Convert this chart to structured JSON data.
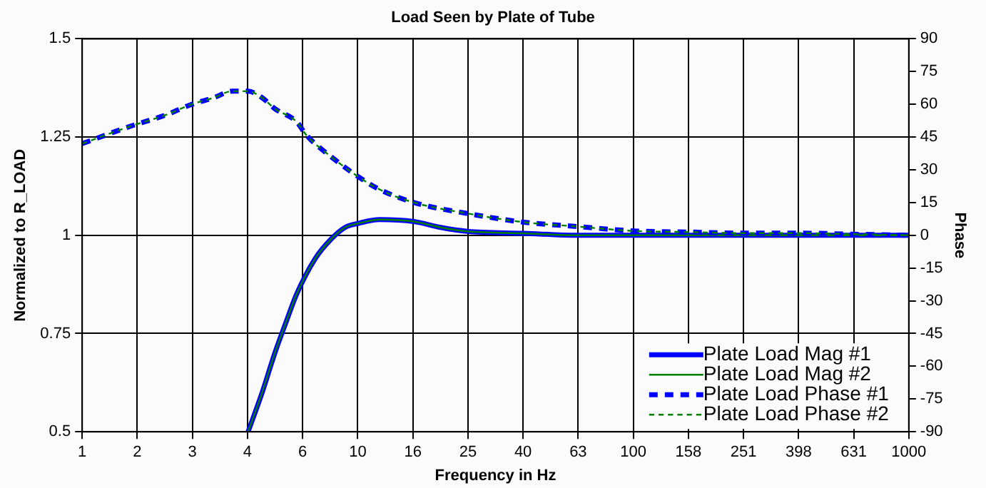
{
  "chart_data": {
    "type": "line",
    "title": "Load Seen by Plate of Tube",
    "xlabel": "Frequency in Hz",
    "ylabel": "Normalized to R_LOAD",
    "y2label": "Phase",
    "log": "x",
    "xlim": [
      1,
      1000
    ],
    "xticks": [
      1,
      {
        "value": 1.585,
        "label": "2"
      },
      {
        "value": 2.512,
        "label": "3"
      },
      {
        "value": 3.981,
        "label": "4"
      },
      {
        "value": 6.31,
        "label": "6"
      },
      10,
      {
        "value": 15.85,
        "label": "16"
      },
      {
        "value": 25.12,
        "label": "25"
      },
      {
        "value": 39.81,
        "label": "40"
      },
      {
        "value": 63.1,
        "label": "63"
      },
      100,
      {
        "value": 158.5,
        "label": "158"
      },
      {
        "value": 251.2,
        "label": "251"
      },
      {
        "value": 398.1,
        "label": "398"
      },
      {
        "value": 631,
        "label": "631"
      },
      1000
    ],
    "ylim": [
      0.5,
      1.5
    ],
    "yticks": [
      0.5,
      0.75,
      1.0,
      1.25,
      1.5
    ],
    "y2lim": [
      -90,
      90
    ],
    "y2ticks": [
      -90,
      -75,
      -60,
      -45,
      -30,
      -15,
      0,
      15,
      30,
      45,
      60,
      75,
      90
    ],
    "grid": true,
    "legend": "bottom right",
    "marker": "none",
    "series": [
      {
        "name": "Plate Load Mag #1",
        "color": "#0000ff",
        "line_style": "solid",
        "x": [
          4,
          4.5,
          5,
          5.5,
          6,
          7,
          8,
          9,
          10,
          12,
          16,
          20,
          25,
          40,
          63,
          100,
          1000
        ],
        "values": [
          0.5,
          0.6,
          0.7,
          0.78,
          0.85,
          0.94,
          0.99,
          1.02,
          1.03,
          1.04,
          1.035,
          1.02,
          1.01,
          1.005,
          1.0,
          1.0,
          1.0
        ]
      },
      {
        "name": "Plate Load Mag #2",
        "color": "#008000",
        "line_style": "solid",
        "x": [
          4,
          4.5,
          5,
          5.5,
          6,
          7,
          8,
          9,
          10,
          12,
          16,
          20,
          25,
          40,
          63,
          100,
          1000
        ],
        "values": [
          0.5,
          0.6,
          0.7,
          0.78,
          0.85,
          0.94,
          0.99,
          1.02,
          1.03,
          1.04,
          1.035,
          1.02,
          1.01,
          1.005,
          1.0,
          1.0,
          1.0
        ]
      },
      {
        "name": "Plate Load Phase #1",
        "color": "#0000ff",
        "line_style": "dashed",
        "axis": "y2",
        "x": [
          1,
          1.5,
          2,
          2.5,
          3,
          3.5,
          4,
          4.5,
          5,
          6,
          6.5,
          8,
          10,
          12,
          16,
          25,
          40,
          63,
          100,
          158,
          251,
          398,
          631,
          1000
        ],
        "values": [
          42,
          50,
          55,
          60,
          63,
          66,
          66,
          63,
          58,
          52,
          46,
          36,
          27,
          21,
          15,
          10,
          6,
          4,
          2,
          1.5,
          1,
          1,
          0.5,
          0
        ]
      },
      {
        "name": "Plate Load Phase #2",
        "color": "#008000",
        "line_style": "dashed",
        "axis": "y2",
        "x": [
          1,
          1.5,
          2,
          2.5,
          3,
          3.5,
          4,
          4.5,
          5,
          6,
          6.5,
          8,
          10,
          12,
          16,
          25,
          40,
          63,
          100,
          158,
          251,
          398,
          631,
          1000
        ],
        "values": [
          42,
          50,
          55,
          60,
          63,
          66,
          66,
          63,
          58,
          52,
          46,
          36,
          27,
          21,
          15,
          10,
          6,
          4,
          2,
          1.5,
          1,
          1,
          0.5,
          0
        ]
      }
    ]
  }
}
